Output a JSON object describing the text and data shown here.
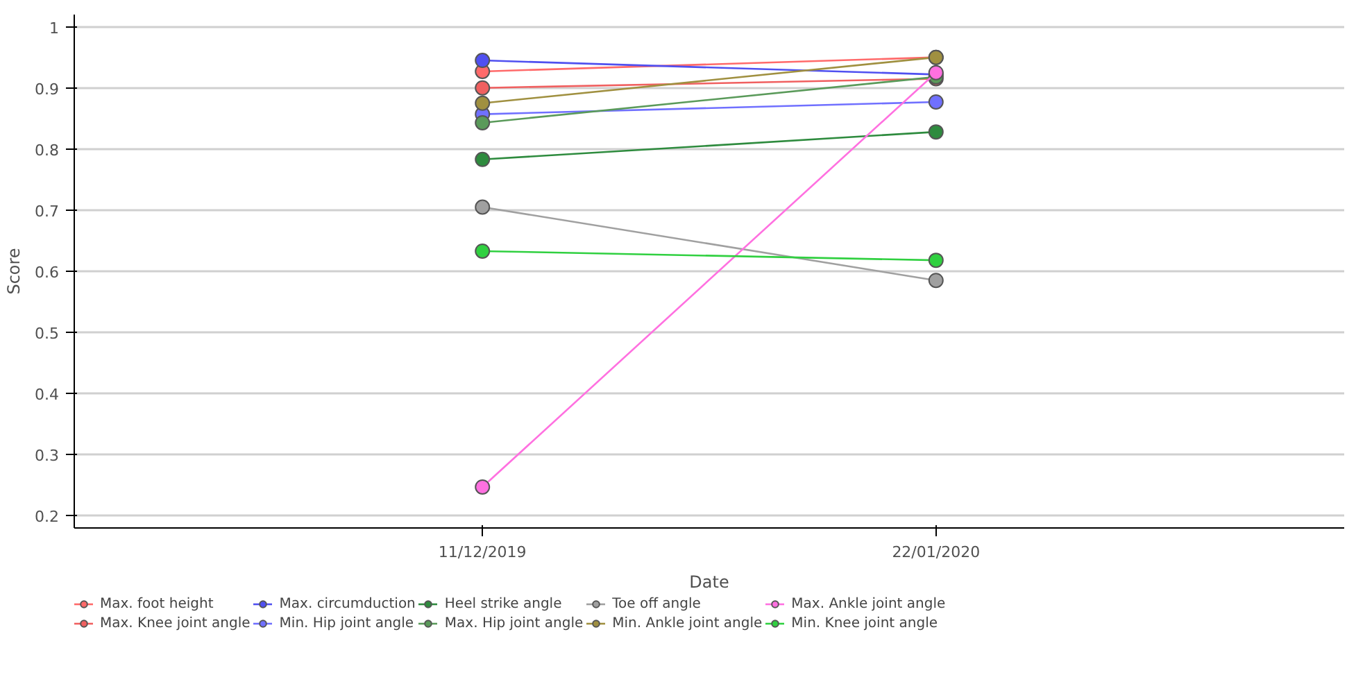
{
  "chart_data": {
    "type": "line",
    "xlabel": "Date",
    "ylabel": "Score",
    "categories": [
      "11/12/2019",
      "22/01/2020"
    ],
    "ylim": [
      0.18,
      1.02
    ],
    "yticks": [
      0.2,
      0.3,
      0.4,
      0.5,
      0.6,
      0.7,
      0.8,
      0.9,
      1
    ],
    "grid": "y",
    "legend": "bottom",
    "marker": "circle",
    "line_style": "solid",
    "series": [
      {
        "name": "Max. foot height",
        "color": "#ff6a6a",
        "values": [
          0.927,
          0.95
        ]
      },
      {
        "name": "Max. Knee joint angle",
        "color": "#f06060",
        "values": [
          0.9,
          0.915
        ]
      },
      {
        "name": "Max. circumduction",
        "color": "#5050f0",
        "values": [
          0.945,
          0.922
        ]
      },
      {
        "name": "Min. Hip joint angle",
        "color": "#7070ff",
        "values": [
          0.857,
          0.877
        ]
      },
      {
        "name": "Heel strike angle",
        "color": "#2e8b3e",
        "values": [
          0.783,
          0.828
        ]
      },
      {
        "name": "Max. Hip joint angle",
        "color": "#5a9a5a",
        "values": [
          0.843,
          0.918
        ]
      },
      {
        "name": "Toe off angle",
        "color": "#a0a0a0",
        "values": [
          0.705,
          0.585
        ]
      },
      {
        "name": "Min. Ankle joint angle",
        "color": "#a09040",
        "values": [
          0.875,
          0.95
        ]
      },
      {
        "name": "Max. Ankle joint angle",
        "color": "#ff70e0",
        "values": [
          0.247,
          0.925
        ]
      },
      {
        "name": "Min. Knee joint angle",
        "color": "#30d040",
        "values": [
          0.633,
          0.618
        ]
      }
    ]
  }
}
